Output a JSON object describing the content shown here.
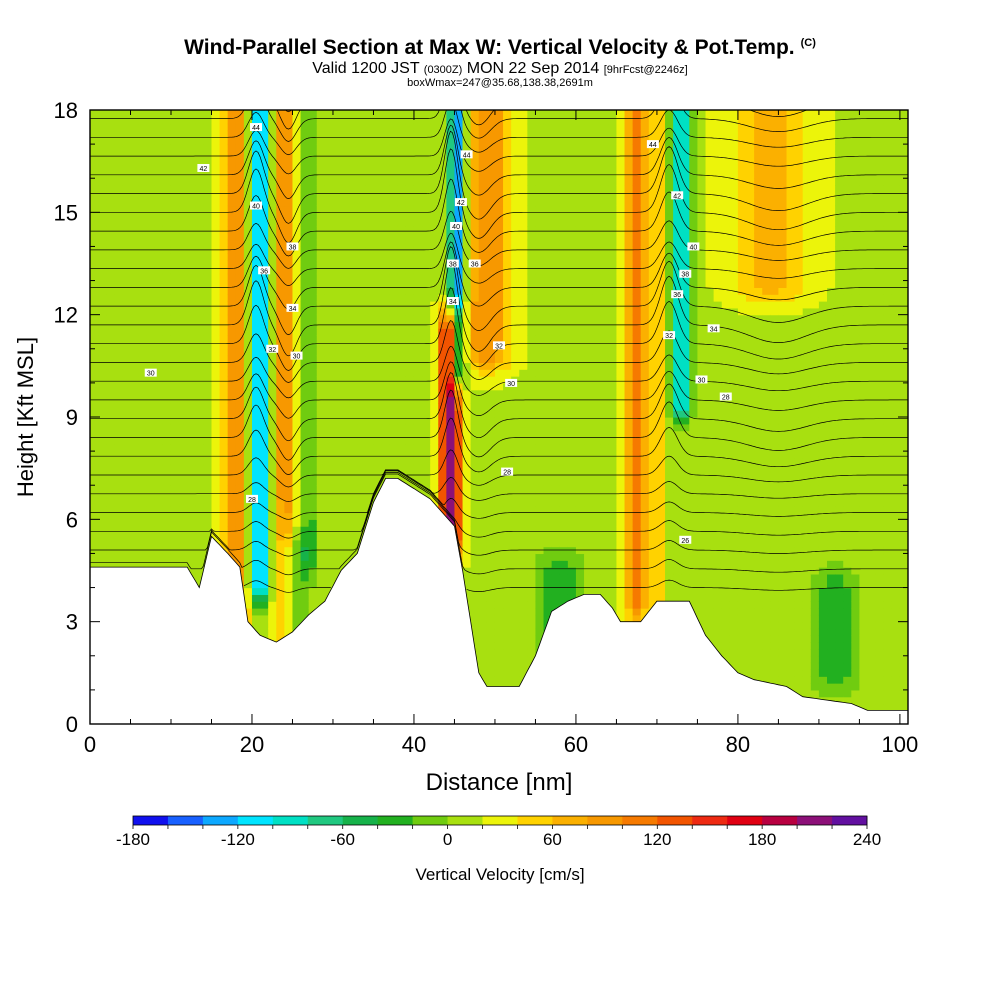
{
  "header": {
    "title_main": "Wind-Parallel Section at Max W: Vertical Velocity & Pot.Temp.",
    "title_c": "(C)",
    "subtitle_a": "Valid 1200 JST",
    "subtitle_b": "(0300Z)",
    "subtitle_c": "MON 22 Sep 2014",
    "subtitle_d": "[9hrFcst@2246z]",
    "subtitle_line3": "boxWmax=247@35.68,138.38,2691m"
  },
  "chart_data": {
    "type": "heatmap",
    "xlabel": "Distance [nm]",
    "ylabel": "Height [Kft MSL]",
    "xlim": [
      0,
      101
    ],
    "ylim": [
      0,
      18
    ],
    "x_ticks": [
      0,
      20,
      40,
      60,
      80,
      100
    ],
    "y_ticks": [
      0,
      3,
      6,
      9,
      12,
      15,
      18
    ],
    "background_velocity": 15,
    "velocity_bands": [
      {
        "x": 18,
        "half_width": 1.5,
        "ymin": 3.2,
        "ymax": 18,
        "w": 95
      },
      {
        "x": 21,
        "half_width": 1.2,
        "ymin": 4.2,
        "ymax": 18,
        "w": -150
      },
      {
        "x": 24,
        "half_width": 1.5,
        "ymin": 2.6,
        "ymax": 18,
        "w": 75
      },
      {
        "x": 27,
        "half_width": 1.2,
        "ymin": 5.0,
        "ymax": 18,
        "w": -40
      },
      {
        "x": 44.5,
        "half_width": 1.3,
        "ymin": 5.5,
        "ymax": 11.5,
        "w": 200
      },
      {
        "x": 45.3,
        "half_width": 1.0,
        "ymin": 10.5,
        "ymax": 18,
        "w": -175
      },
      {
        "x": 49,
        "half_width": 3.0,
        "ymin": 11.0,
        "ymax": 18,
        "w": 85
      },
      {
        "x": 67.5,
        "half_width": 1.3,
        "ymin": 3.5,
        "ymax": 18,
        "w": 85
      },
      {
        "x": 73,
        "half_width": 1.2,
        "ymin": 9.5,
        "ymax": 18,
        "w": -130
      },
      {
        "x": 70,
        "half_width": 1.0,
        "ymin": 4.0,
        "ymax": 18,
        "w": 40
      },
      {
        "x": 84,
        "half_width": 5.0,
        "ymin": 13.0,
        "ymax": 18,
        "w": 55
      },
      {
        "x": 25,
        "half_width": 2.0,
        "ymin": 2.5,
        "ymax": 5.0,
        "w": -50
      },
      {
        "x": 58,
        "half_width": 3.0,
        "ymin": 1.5,
        "ymax": 4.5,
        "w": -45
      },
      {
        "x": 92,
        "half_width": 3.0,
        "ymin": 1.5,
        "ymax": 4.0,
        "w": -45
      }
    ],
    "terrain": [
      [
        0,
        4.6
      ],
      [
        12,
        4.6
      ],
      [
        13.5,
        4.0
      ],
      [
        15,
        5.5
      ],
      [
        17,
        5.0
      ],
      [
        18.5,
        4.6
      ],
      [
        19.5,
        3.0
      ],
      [
        21,
        2.6
      ],
      [
        23,
        2.4
      ],
      [
        25,
        2.7
      ],
      [
        27,
        3.2
      ],
      [
        29,
        3.6
      ],
      [
        31,
        4.5
      ],
      [
        33,
        5.0
      ],
      [
        35,
        6.5
      ],
      [
        36.5,
        7.2
      ],
      [
        38,
        7.2
      ],
      [
        40,
        6.9
      ],
      [
        42,
        6.6
      ],
      [
        43.5,
        6.2
      ],
      [
        45,
        5.8
      ],
      [
        46,
        4.5
      ],
      [
        47,
        3.0
      ],
      [
        48,
        1.5
      ],
      [
        49,
        1.1
      ],
      [
        53,
        1.1
      ],
      [
        55,
        2.0
      ],
      [
        57,
        3.3
      ],
      [
        59,
        3.6
      ],
      [
        61,
        3.8
      ],
      [
        63,
        3.8
      ],
      [
        64.5,
        3.4
      ],
      [
        65.5,
        3.0
      ],
      [
        68,
        3.0
      ],
      [
        70,
        3.6
      ],
      [
        74,
        3.6
      ],
      [
        76,
        2.6
      ],
      [
        78,
        2.0
      ],
      [
        80,
        1.5
      ],
      [
        82,
        1.3
      ],
      [
        86,
        1.1
      ],
      [
        88,
        0.8
      ],
      [
        94,
        0.6
      ],
      [
        96,
        0.4
      ],
      [
        101,
        0.4
      ]
    ],
    "colorbar": {
      "label": "Vertical Velocity [cm/s]",
      "min": -180,
      "max": 240,
      "step": 20,
      "tick_values": [
        "-180",
        "-120",
        "-60",
        "0",
        "60",
        "120",
        "180",
        "240"
      ],
      "colors": [
        "#1010ee",
        "#1860ff",
        "#0ca8ff",
        "#00e4ff",
        "#00e0c4",
        "#20c880",
        "#16b24a",
        "#22b020",
        "#70cc10",
        "#a8e010",
        "#ecf40a",
        "#ffd200",
        "#fbb000",
        "#f79800",
        "#f67a00",
        "#f25400",
        "#ee2a12",
        "#e00012",
        "#b80040",
        "#8c1078",
        "#6210a0"
      ]
    },
    "contour_labels": [
      {
        "x": 20.5,
        "y": 17.5,
        "text": "44"
      },
      {
        "x": 14,
        "y": 16.3,
        "text": "42"
      },
      {
        "x": 20.5,
        "y": 15.2,
        "text": "40"
      },
      {
        "x": 25,
        "y": 14.0,
        "text": "38"
      },
      {
        "x": 21.5,
        "y": 13.3,
        "text": "36"
      },
      {
        "x": 25,
        "y": 12.2,
        "text": "34"
      },
      {
        "x": 22.5,
        "y": 11.0,
        "text": "32"
      },
      {
        "x": 25.5,
        "y": 10.8,
        "text": "30"
      },
      {
        "x": 7.5,
        "y": 10.3,
        "text": "30"
      },
      {
        "x": 20,
        "y": 6.6,
        "text": "28"
      },
      {
        "x": 46.5,
        "y": 16.7,
        "text": "44"
      },
      {
        "x": 45.8,
        "y": 15.3,
        "text": "42"
      },
      {
        "x": 45.2,
        "y": 14.6,
        "text": "40"
      },
      {
        "x": 44.8,
        "y": 13.5,
        "text": "38"
      },
      {
        "x": 47.5,
        "y": 13.5,
        "text": "36"
      },
      {
        "x": 44.8,
        "y": 12.4,
        "text": "34"
      },
      {
        "x": 50.5,
        "y": 11.1,
        "text": "32"
      },
      {
        "x": 52,
        "y": 10.0,
        "text": "30"
      },
      {
        "x": 51.5,
        "y": 7.4,
        "text": "28"
      },
      {
        "x": 69.5,
        "y": 17.0,
        "text": "44"
      },
      {
        "x": 72.5,
        "y": 15.5,
        "text": "42"
      },
      {
        "x": 74.5,
        "y": 14.0,
        "text": "40"
      },
      {
        "x": 73.5,
        "y": 13.2,
        "text": "38"
      },
      {
        "x": 72.5,
        "y": 12.6,
        "text": "36"
      },
      {
        "x": 77,
        "y": 11.6,
        "text": "34"
      },
      {
        "x": 71.5,
        "y": 11.4,
        "text": "32"
      },
      {
        "x": 75.5,
        "y": 10.1,
        "text": "30"
      },
      {
        "x": 78.5,
        "y": 9.6,
        "text": "28"
      },
      {
        "x": 73.5,
        "y": 5.4,
        "text": "26"
      }
    ]
  }
}
